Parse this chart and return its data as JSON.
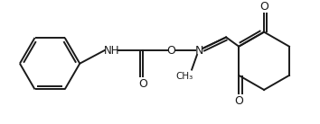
{
  "bg_color": "#ffffff",
  "line_color": "#1a1a1a",
  "bond_lw": 1.4,
  "figsize": [
    3.54,
    1.38
  ],
  "dpi": 100,
  "xlim": [
    0,
    354
  ],
  "ylim": [
    0,
    138
  ]
}
